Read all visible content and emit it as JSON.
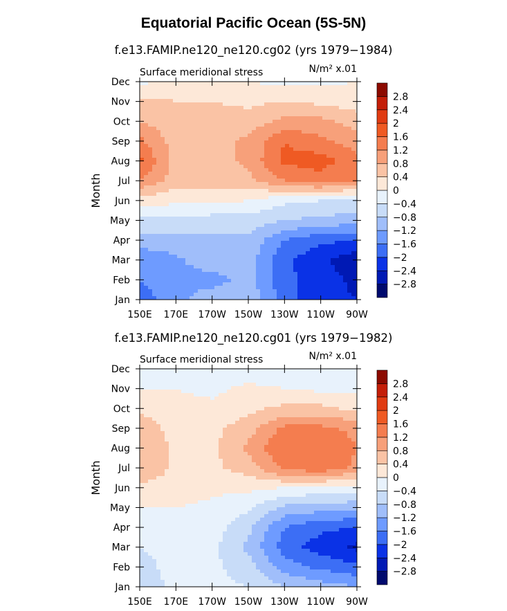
{
  "title": "Equatorial Pacific Ocean (5S-5N)",
  "colors": {
    "bins": [
      "#000a6e",
      "#0019b4",
      "#0a32e6",
      "#3c6ef5",
      "#6e9bff",
      "#a0befa",
      "#c8dcf8",
      "#e8f2fc",
      "#fde8d8",
      "#fac3a5",
      "#f7a07a",
      "#f47d4f",
      "#ef5a23",
      "#e03b12",
      "#c41e08",
      "#8c0a00"
    ],
    "frame": "#000000"
  },
  "panels": [
    {
      "title": "f.e13.FAMIP.ne120_ne120.cg02 (yrs 1979−1984)",
      "left_label": "Surface meridional stress",
      "right_label": "N/m² x.01",
      "ylabel": "Month"
    },
    {
      "title": "f.e13.FAMIP.ne120_ne120.cg01 (yrs 1979−1982)",
      "left_label": "Surface meridional stress",
      "right_label": "N/m² x.01",
      "ylabel": "Month"
    }
  ],
  "chart_data": [
    {
      "type": "heatmap",
      "title": "f.e13.FAMIP.ne120_ne120.cg02 (yrs 1979−1984)",
      "ylabel": "Month",
      "x_ticks": [
        "150E",
        "170E",
        "170W",
        "150W",
        "130W",
        "110W",
        "90W"
      ],
      "y_ticks": [
        "Jan",
        "Feb",
        "Mar",
        "Apr",
        "May",
        "Jun",
        "Jul",
        "Aug",
        "Sep",
        "Oct",
        "Nov",
        "Dec"
      ],
      "colorbar_ticks": [
        "−2.8",
        "−2.4",
        "−2",
        "−1.6",
        "−1.2",
        "−0.8",
        "−0.4",
        "0",
        "0.4",
        "0.8",
        "1.2",
        "1.6",
        "2",
        "2.4",
        "2.8"
      ],
      "longitudes": [
        150,
        170,
        190,
        210,
        230,
        250,
        270
      ],
      "values": [
        [
          -1.8,
          -1.4,
          -0.9,
          -0.9,
          -1.8,
          -2.3,
          -2.4
        ],
        [
          -1.6,
          -1.3,
          -1.4,
          -1.0,
          -1.9,
          -2.2,
          -2.5
        ],
        [
          -1.6,
          -1.3,
          -0.9,
          -1.0,
          -1.9,
          -2.3,
          -2.7
        ],
        [
          -0.9,
          -0.9,
          -0.9,
          -0.9,
          -1.6,
          -1.9,
          -2.0
        ],
        [
          -0.5,
          -0.5,
          -0.6,
          -0.6,
          -0.8,
          -0.9,
          -1.0
        ],
        [
          0.2,
          0.1,
          0.1,
          0.0,
          -0.3,
          -0.4,
          -0.5
        ],
        [
          1.2,
          0.6,
          0.6,
          0.7,
          1.2,
          1.4,
          1.2
        ],
        [
          1.7,
          0.6,
          0.6,
          0.9,
          1.7,
          1.8,
          1.3
        ],
        [
          1.3,
          0.6,
          0.6,
          0.9,
          1.6,
          1.3,
          1.0
        ],
        [
          0.8,
          0.5,
          0.6,
          0.6,
          0.9,
          0.9,
          0.6
        ],
        [
          0.5,
          0.4,
          0.4,
          0.3,
          0.4,
          0.3,
          0.2
        ],
        [
          -0.1,
          0.1,
          0.1,
          0.0,
          -0.1,
          -0.1,
          0.0
        ]
      ]
    },
    {
      "type": "heatmap",
      "title": "f.e13.FAMIP.ne120_ne120.cg01 (yrs 1979−1982)",
      "ylabel": "Month",
      "x_ticks": [
        "150E",
        "170E",
        "170W",
        "150W",
        "130W",
        "110W",
        "90W"
      ],
      "y_ticks": [
        "Jan",
        "Feb",
        "Mar",
        "Apr",
        "May",
        "Jun",
        "Jul",
        "Aug",
        "Sep",
        "Oct",
        "Nov",
        "Dec"
      ],
      "colorbar_ticks": [
        "−2.8",
        "−2.4",
        "−2",
        "−1.6",
        "−1.2",
        "−0.8",
        "−0.4",
        "0",
        "0.4",
        "0.8",
        "1.2",
        "1.6",
        "2",
        "2.4",
        "2.8"
      ],
      "longitudes": [
        150,
        170,
        190,
        210,
        230,
        250,
        270
      ],
      "values": [
        [
          -0.6,
          -0.3,
          -0.3,
          -0.4,
          -0.8,
          -1.0,
          -1.2
        ],
        [
          -0.5,
          -0.3,
          -0.3,
          -0.6,
          -1.4,
          -1.7,
          -1.9
        ],
        [
          -0.4,
          -0.3,
          -0.3,
          -0.9,
          -1.8,
          -2.2,
          -2.5
        ],
        [
          -0.3,
          -0.2,
          -0.2,
          -0.7,
          -1.6,
          -1.9,
          -2.0
        ],
        [
          0.0,
          0.0,
          -0.1,
          -0.3,
          -0.9,
          -1.0,
          -1.1
        ],
        [
          0.3,
          0.2,
          0.1,
          0.1,
          0.0,
          -0.1,
          -0.1
        ],
        [
          0.8,
          0.3,
          0.3,
          0.6,
          1.3,
          1.5,
          1.1
        ],
        [
          0.8,
          0.3,
          0.3,
          0.9,
          1.6,
          1.6,
          1.2
        ],
        [
          0.7,
          0.2,
          0.3,
          0.6,
          1.3,
          1.3,
          1.1
        ],
        [
          0.3,
          0.1,
          0.1,
          0.3,
          0.5,
          0.5,
          0.3
        ],
        [
          0.0,
          0.0,
          -0.1,
          0.1,
          0.0,
          -0.1,
          -0.1
        ],
        [
          -0.3,
          -0.2,
          -0.2,
          -0.3,
          -0.3,
          -0.3,
          -0.3
        ]
      ]
    }
  ]
}
